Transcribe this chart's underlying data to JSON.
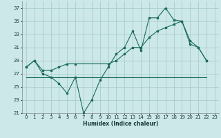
{
  "xlabel": "Humidex (Indice chaleur)",
  "bg_color": "#cce8e8",
  "grid_color": "#aacccc",
  "line_color": "#1a6b5a",
  "ylim": [
    21,
    38
  ],
  "yticks": [
    21,
    23,
    25,
    27,
    29,
    31,
    33,
    35,
    37
  ],
  "xlim": [
    -0.5,
    23.5
  ],
  "xticks": [
    0,
    1,
    2,
    3,
    4,
    5,
    6,
    7,
    8,
    9,
    10,
    11,
    12,
    13,
    14,
    15,
    16,
    17,
    18,
    19,
    20,
    21,
    22,
    23
  ],
  "series1_x": [
    0,
    1,
    2,
    3,
    4,
    5,
    6,
    7,
    8,
    9,
    10,
    11,
    12,
    13,
    14,
    15,
    16,
    17,
    18,
    19,
    20,
    21,
    22
  ],
  "series1_y": [
    28,
    29,
    27,
    26.5,
    25.5,
    24,
    26.5,
    21,
    23,
    26,
    28,
    30,
    31,
    33.5,
    30.5,
    35.5,
    35.5,
    37,
    35.2,
    35,
    32,
    31,
    29
  ],
  "series2_x": [
    0,
    1,
    2,
    3,
    4,
    5,
    6,
    10,
    11,
    12,
    13,
    14,
    15,
    16,
    17,
    18,
    19,
    20,
    21,
    22
  ],
  "series2_y": [
    28,
    29,
    27.5,
    27.5,
    28,
    28.5,
    28.5,
    28.5,
    29,
    30,
    31,
    31,
    32.5,
    33.5,
    34,
    34.5,
    35,
    31.5,
    31,
    29
  ],
  "series3_x": [
    0,
    22
  ],
  "series3_y": [
    26.5,
    26.5
  ]
}
